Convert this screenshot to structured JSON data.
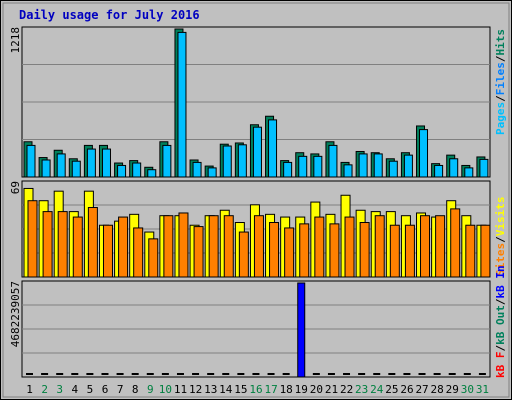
{
  "colors": {
    "background": "#c0c0c0",
    "plot_area": "#c0c0c0",
    "title": "#0000c0",
    "hits": "#00805c",
    "files": "#0080ff",
    "pages": "#00c0ff",
    "visits": "#ffff00",
    "sites": "#ff8000",
    "kb_in": "#0000ff",
    "kb_out": "#00805c",
    "kb_f": "#ff0000",
    "grid": "#808080",
    "weekend_label": "#008040"
  },
  "chart_data": [
    {
      "type": "bar",
      "title": "Daily usage for July 2016",
      "ylabel_max": "1218",
      "ylim": [
        0,
        1218
      ],
      "legend": [
        "Hits",
        "Files",
        "Pages"
      ],
      "legend_separator": "/",
      "legend_placement": "right",
      "grid": true,
      "categories": [
        "1",
        "2",
        "3",
        "4",
        "5",
        "6",
        "7",
        "8",
        "9",
        "10",
        "11",
        "12",
        "13",
        "14",
        "15",
        "16",
        "17",
        "18",
        "19",
        "20",
        "21",
        "22",
        "23",
        "24",
        "25",
        "26",
        "27",
        "28",
        "29",
        "30",
        "31"
      ],
      "series": [
        {
          "name": "Hits",
          "values": [
            290,
            160,
            220,
            150,
            260,
            260,
            115,
            135,
            80,
            290,
            1218,
            140,
            90,
            270,
            280,
            430,
            500,
            135,
            200,
            190,
            290,
            120,
            210,
            200,
            150,
            200,
            420,
            110,
            180,
            95,
            165
          ]
        },
        {
          "name": "Files",
          "values": [
            260,
            140,
            190,
            130,
            230,
            230,
            95,
            115,
            60,
            260,
            1190,
            120,
            75,
            255,
            265,
            410,
            470,
            120,
            170,
            170,
            260,
            100,
            190,
            190,
            130,
            180,
            390,
            95,
            150,
            75,
            145
          ]
        }
      ]
    },
    {
      "type": "bar",
      "ylabel_max": "69",
      "ylim": [
        0,
        69
      ],
      "legend": [
        "Visits",
        "Sites"
      ],
      "legend_separator": "/",
      "legend_placement": "right",
      "grid": true,
      "categories": [
        "1",
        "2",
        "3",
        "4",
        "5",
        "6",
        "7",
        "8",
        "9",
        "10",
        "11",
        "12",
        "13",
        "14",
        "15",
        "16",
        "17",
        "18",
        "19",
        "20",
        "21",
        "22",
        "23",
        "24",
        "25",
        "26",
        "27",
        "28",
        "29",
        "30",
        "31"
      ],
      "series": [
        {
          "name": "Visits",
          "values": [
            65,
            56,
            63,
            48,
            63,
            38,
            41,
            46,
            33,
            45,
            45,
            38,
            45,
            49,
            40,
            53,
            46,
            44,
            44,
            55,
            46,
            60,
            49,
            48,
            48,
            45,
            47,
            44,
            56,
            45,
            38
          ]
        },
        {
          "name": "Sites",
          "values": [
            56,
            48,
            48,
            44,
            51,
            38,
            44,
            36,
            28,
            45,
            47,
            37,
            45,
            45,
            33,
            45,
            40,
            36,
            39,
            44,
            39,
            44,
            40,
            45,
            38,
            38,
            45,
            45,
            50,
            38,
            38
          ]
        }
      ]
    },
    {
      "type": "bar",
      "ylabel_max": "4682239057",
      "ylim": [
        0,
        4682239057
      ],
      "legend": [
        "kB F",
        "kB Out",
        "kB In"
      ],
      "legend_separator": "/",
      "legend_placement": "right",
      "grid": true,
      "categories": [
        "1",
        "2",
        "3",
        "4",
        "5",
        "6",
        "7",
        "8",
        "9",
        "10",
        "11",
        "12",
        "13",
        "14",
        "15",
        "16",
        "17",
        "18",
        "19",
        "20",
        "21",
        "22",
        "23",
        "24",
        "25",
        "26",
        "27",
        "28",
        "29",
        "30",
        "31"
      ],
      "series": [
        {
          "name": "kB In",
          "values": [
            0,
            0,
            0,
            0,
            0,
            0,
            0,
            0,
            0,
            0,
            0,
            0,
            0,
            0,
            0,
            0,
            0,
            0,
            4682239057,
            0,
            0,
            0,
            0,
            0,
            0,
            0,
            0,
            0,
            0,
            0,
            0
          ]
        }
      ]
    }
  ],
  "weekend_days": [
    2,
    3,
    9,
    10,
    16,
    17,
    23,
    24,
    30,
    31
  ]
}
